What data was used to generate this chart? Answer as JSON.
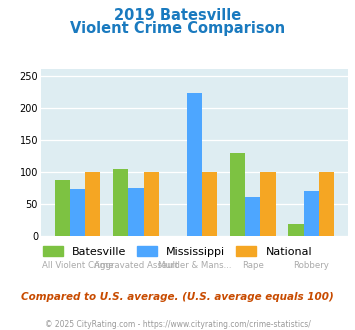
{
  "title_line1": "2019 Batesville",
  "title_line2": "Violent Crime Comparison",
  "categories": [
    "All Violent Crime",
    "Aggravated Assault",
    "Murder & Mans...",
    "Rape",
    "Robbery"
  ],
  "row1_labels": [
    "",
    "Aggravated Assault",
    "",
    "Rape",
    ""
  ],
  "row2_labels": [
    "All Violent Crime",
    "",
    "Murder & Mans...",
    "",
    "Robbery"
  ],
  "batesville": [
    87,
    105,
    0,
    130,
    18
  ],
  "mississippi": [
    73,
    75,
    223,
    60,
    70
  ],
  "national": [
    100,
    100,
    100,
    100,
    100
  ],
  "colors": {
    "batesville": "#7dc242",
    "mississippi": "#4da6ff",
    "national": "#f5a623"
  },
  "ylim": [
    0,
    260
  ],
  "yticks": [
    0,
    50,
    100,
    150,
    200,
    250
  ],
  "background_color": "#deedf2",
  "title_color": "#1a7abf",
  "subtitle_note": "Compared to U.S. average. (U.S. average equals 100)",
  "footer": "© 2025 CityRating.com - https://www.cityrating.com/crime-statistics/",
  "subtitle_color": "#c84b00",
  "footer_color": "#999999",
  "label_color": "#aaaaaa"
}
